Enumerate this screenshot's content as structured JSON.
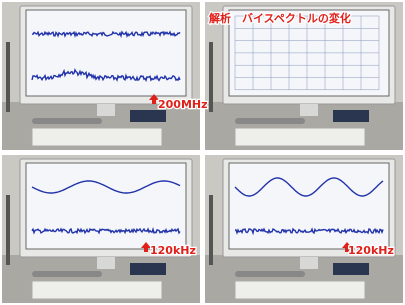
{
  "panels": [
    {
      "label": "200MHz"
    },
    {
      "title": "解析　バイスペクトルの変化"
    },
    {
      "label": "120kHz"
    },
    {
      "label": "120kHz"
    }
  ]
}
